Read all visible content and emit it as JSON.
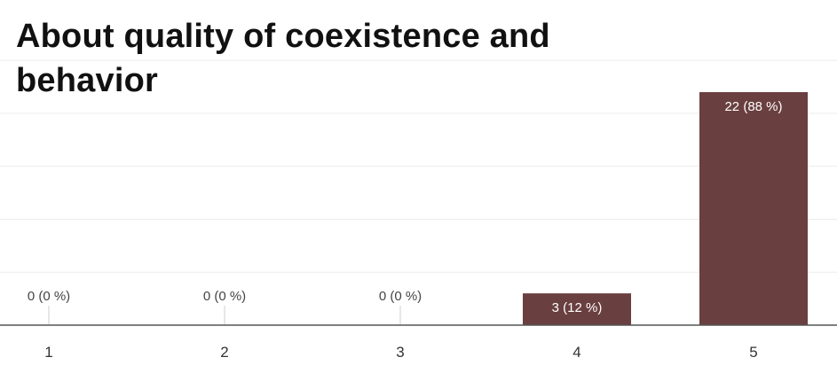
{
  "chart_data": {
    "type": "bar",
    "title": "About quality of coexistence and behavior",
    "categories": [
      "1",
      "2",
      "3",
      "4",
      "5"
    ],
    "values": [
      0,
      0,
      0,
      3,
      22
    ],
    "data_labels": [
      "0 (0 %)",
      "0 (0 %)",
      "0 (0 %)",
      "3 (12 %)",
      "22 (88 %)"
    ],
    "xlabel": "",
    "ylabel": "",
    "ylim": [
      0,
      25
    ],
    "grid": true,
    "legend": "none",
    "colors": {
      "bar": "#6a3f3f",
      "grid": "#ececec",
      "axis": "#555555",
      "label_inside": "#ffffff",
      "label_outside": "#444444"
    }
  }
}
